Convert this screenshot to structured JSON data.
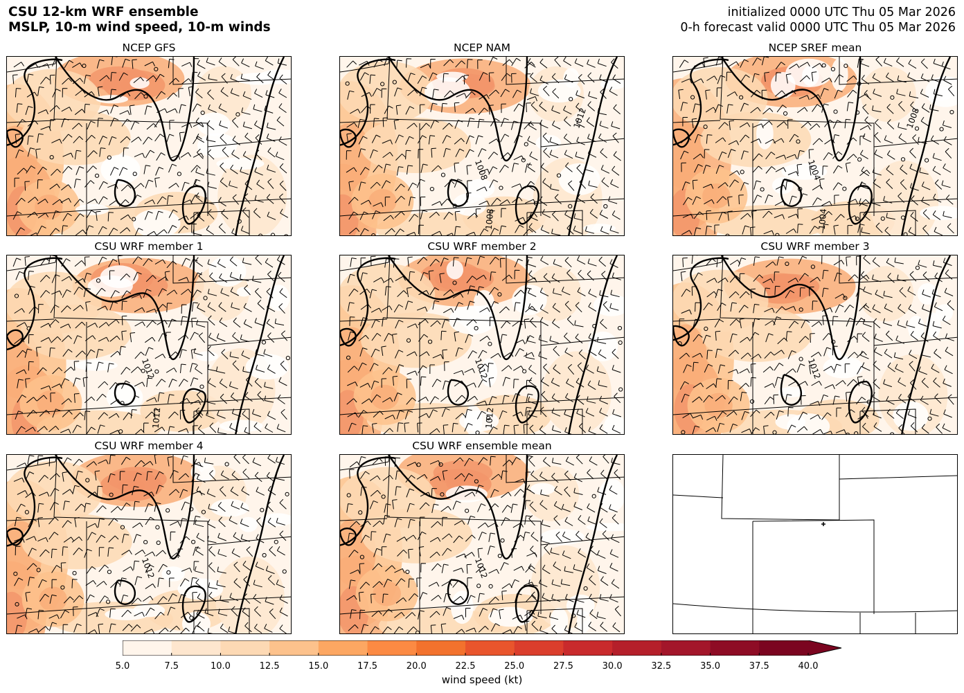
{
  "header": {
    "title_line1": "CSU 12-km WRF ensemble",
    "title_line2": "MSLP, 10-m wind speed, 10-m winds",
    "init_text": "initialized 0000 UTC Thu 05 Mar 2026",
    "valid_text": "0-h forecast valid 0000 UTC Thu 05 Mar 2026"
  },
  "panels": [
    {
      "title": "NCEP GFS",
      "isobar_labels": []
    },
    {
      "title": "NCEP NAM",
      "isobar_labels": [
        "1008",
        "1008",
        "1012"
      ]
    },
    {
      "title": "NCEP SREF mean",
      "isobar_labels": [
        "1004",
        "1004",
        "1008"
      ]
    },
    {
      "title": "CSU WRF member 1",
      "isobar_labels": [
        "1012",
        "1012"
      ]
    },
    {
      "title": "CSU WRF member 2",
      "isobar_labels": [
        "1012",
        "1012"
      ]
    },
    {
      "title": "CSU WRF member 3",
      "isobar_labels": [
        "1012"
      ]
    },
    {
      "title": "CSU WRF member 4",
      "isobar_labels": [
        "1012"
      ]
    },
    {
      "title": "CSU WRF ensemble mean",
      "isobar_labels": [
        "1012"
      ]
    },
    {
      "title": "",
      "isobar_labels": []
    }
  ],
  "colorbar": {
    "label": "wind speed (kt)",
    "ticks": [
      "5.0",
      "7.5",
      "10.0",
      "12.5",
      "15.0",
      "17.5",
      "20.0",
      "22.5",
      "25.0",
      "27.5",
      "30.0",
      "32.5",
      "35.0",
      "37.5",
      "40.0"
    ],
    "colors": [
      "#fff5eb",
      "#fee6ce",
      "#fdd9b4",
      "#fdc28c",
      "#fda762",
      "#fc8a43",
      "#f3722d",
      "#e9552c",
      "#db3e2c",
      "#c92a2c",
      "#b51f2a",
      "#a3162a",
      "#8e0c25",
      "#7b0520"
    ],
    "extend_color": "#7b0520"
  }
}
